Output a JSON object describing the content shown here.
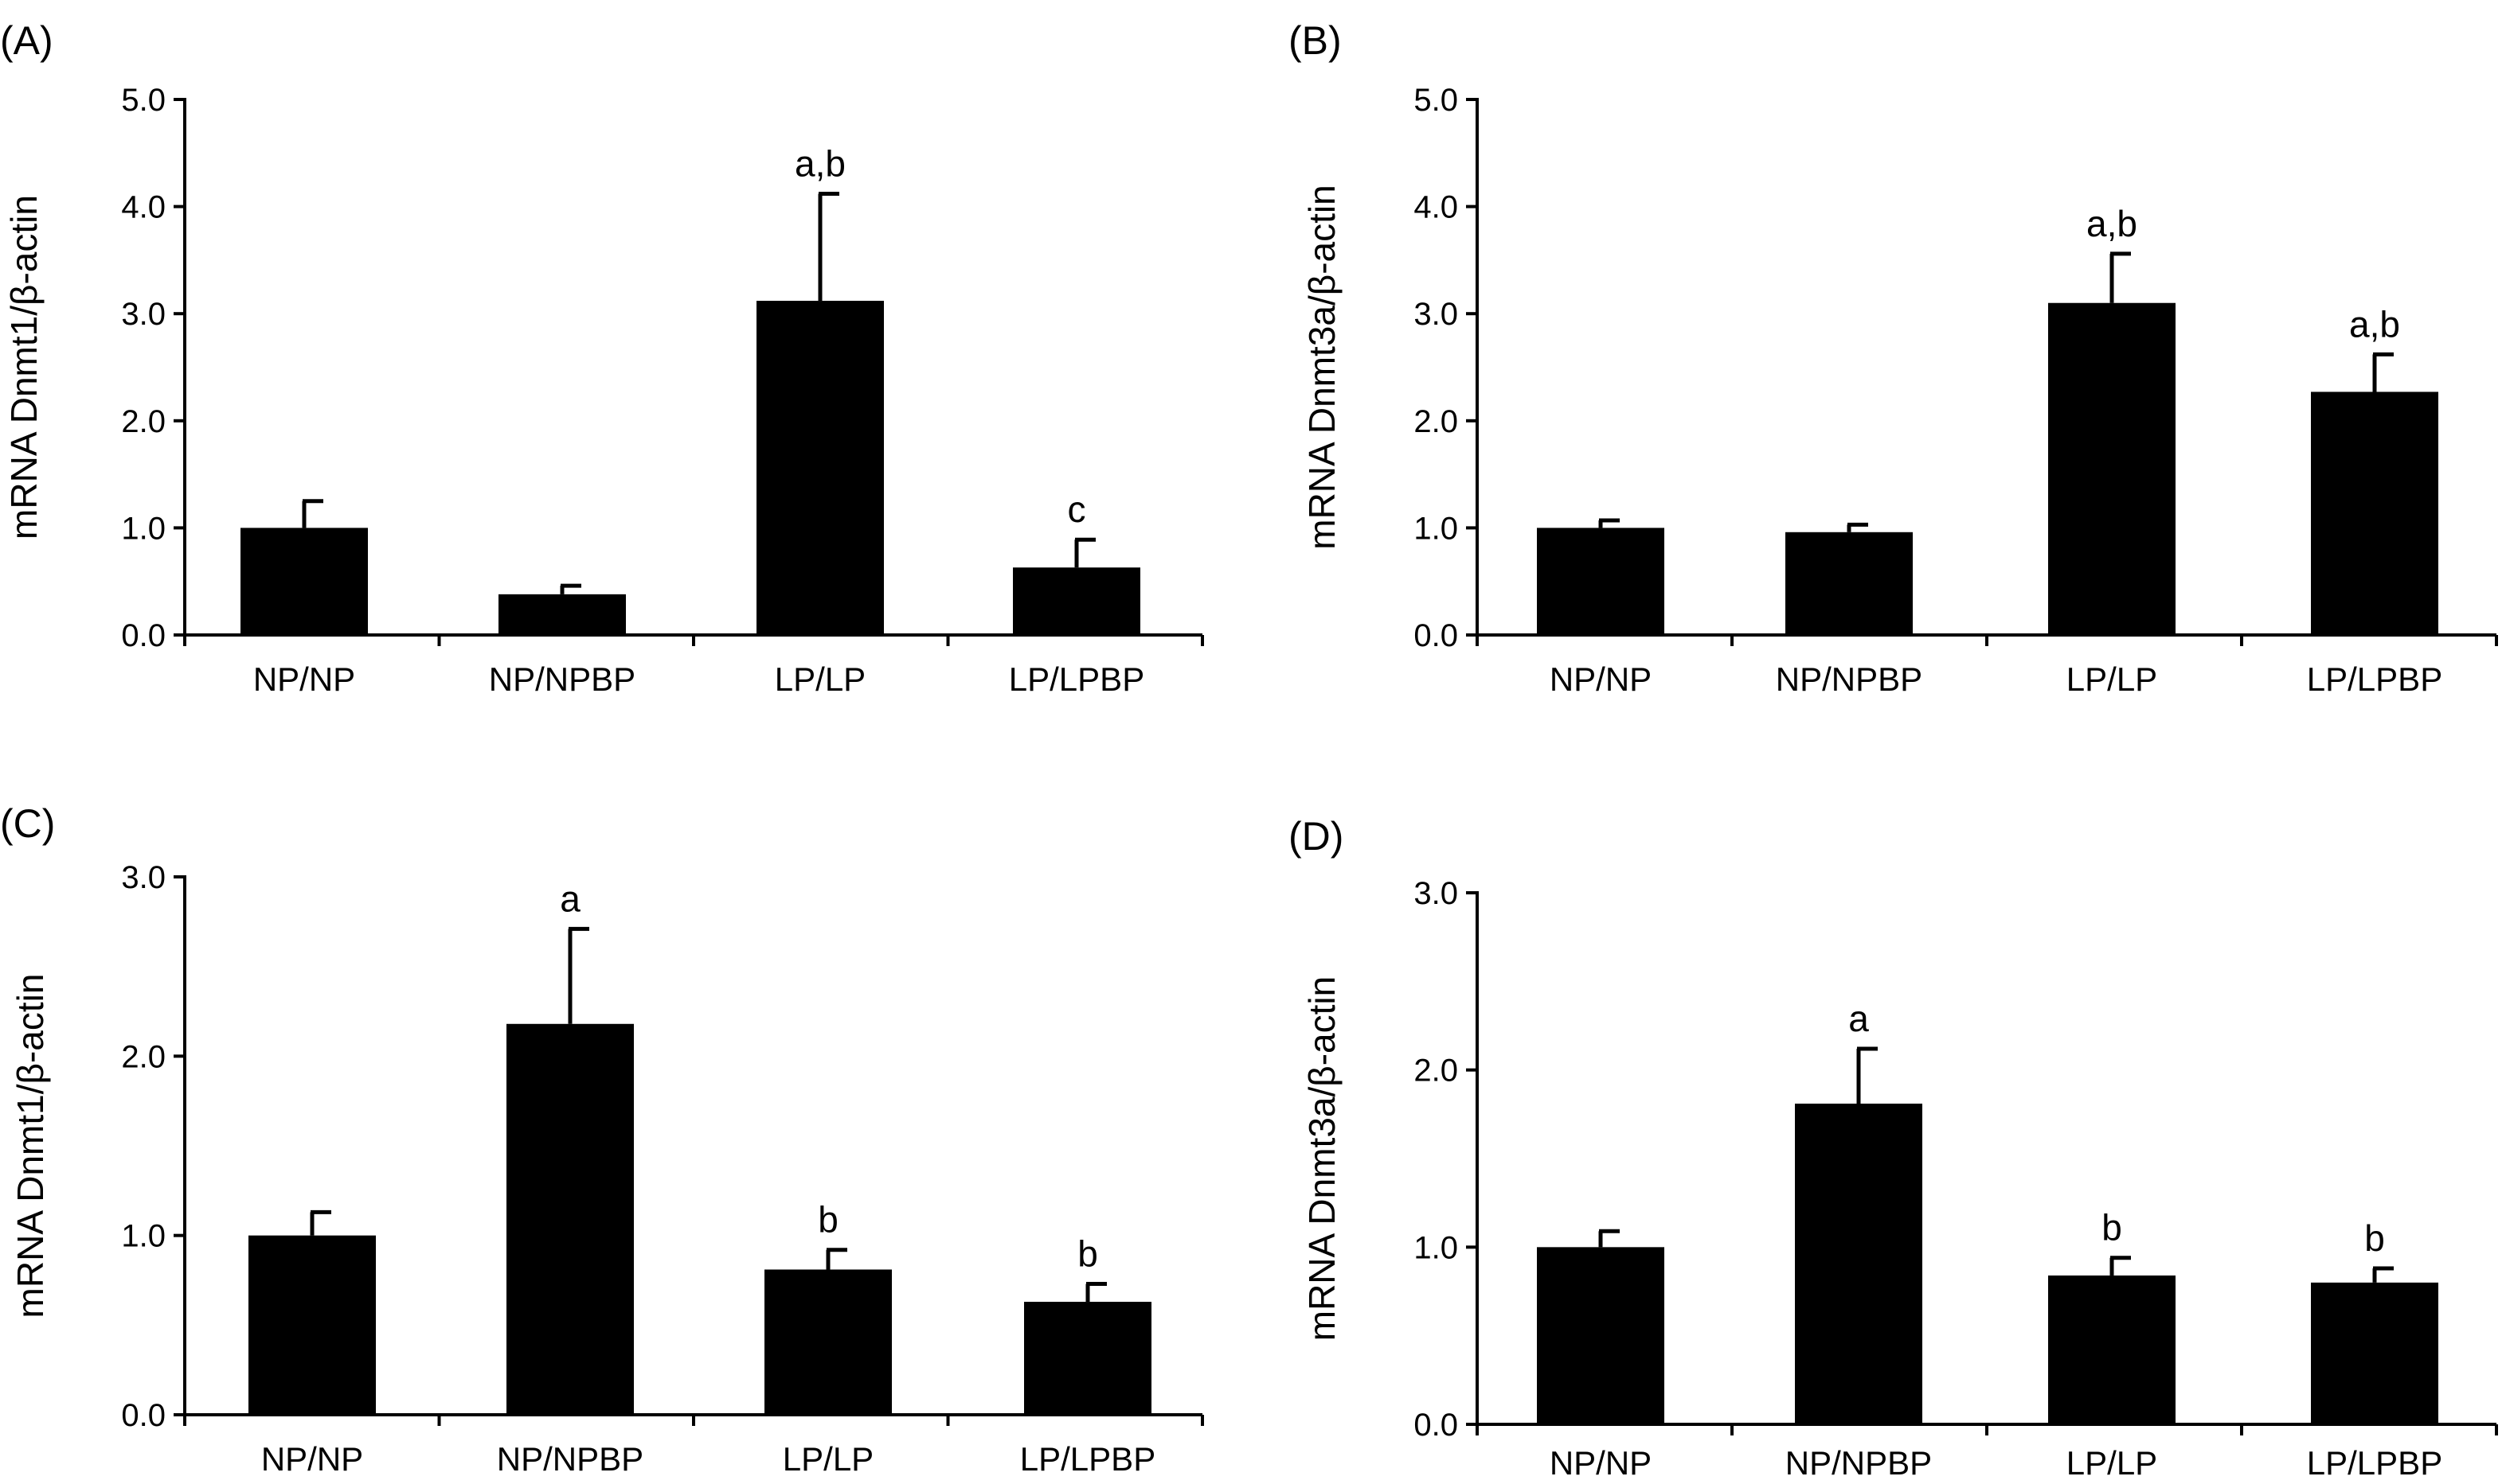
{
  "chart_data": [
    {
      "type": "bar",
      "panel": "(A)",
      "ylabel": "mRNA Dnmt1/β-actin",
      "xlabel": "",
      "categories": [
        "NP/NP",
        "NP/NPBP",
        "LP/LP",
        "LP/LPBP"
      ],
      "values": [
        1.0,
        0.38,
        3.12,
        0.63
      ],
      "errors": [
        0.25,
        0.08,
        1.0,
        0.26
      ],
      "annotations": [
        "",
        "",
        "a,b",
        "c"
      ],
      "ylim": [
        0,
        5
      ],
      "yticks": [
        "0.0",
        "1.0",
        "2.0",
        "3.0",
        "4.0",
        "5.0"
      ],
      "color": "#000000",
      "grid": false
    },
    {
      "type": "bar",
      "panel": "(B)",
      "ylabel": "mRNA Dnmt3a/β-actin",
      "xlabel": "",
      "categories": [
        "NP/NP",
        "NP/NPBP",
        "LP/LP",
        "LP/LPBP"
      ],
      "values": [
        1.0,
        0.96,
        3.1,
        2.27
      ],
      "errors": [
        0.07,
        0.07,
        0.46,
        0.35
      ],
      "annotations": [
        "",
        "",
        "a,b",
        "a,b"
      ],
      "ylim": [
        0,
        5
      ],
      "yticks": [
        "0.0",
        "1.0",
        "2.0",
        "3.0",
        "4.0",
        "5.0"
      ],
      "color": "#000000",
      "grid": false
    },
    {
      "type": "bar",
      "panel": "(C)",
      "ylabel": "mRNA Dnmt1/β-actin",
      "xlabel": "",
      "categories": [
        "NP/NP",
        "NP/NPBP",
        "LP/LP",
        "LP/LPBP"
      ],
      "values": [
        1.0,
        2.18,
        0.81,
        0.63
      ],
      "errors": [
        0.13,
        0.53,
        0.11,
        0.1
      ],
      "annotations": [
        "",
        "a",
        "b",
        "b"
      ],
      "ylim": [
        0,
        3
      ],
      "yticks": [
        "0.0",
        "1.0",
        "2.0",
        "3.0"
      ],
      "color": "#000000",
      "grid": false
    },
    {
      "type": "bar",
      "panel": "(D)",
      "ylabel": "mRNA Dnmt3a/β-actin",
      "xlabel": "",
      "categories": [
        "NP/NP",
        "NP/NPBP",
        "LP/LP",
        "LP/LPBP"
      ],
      "values": [
        1.0,
        1.81,
        0.84,
        0.8
      ],
      "errors": [
        0.09,
        0.31,
        0.1,
        0.08
      ],
      "annotations": [
        "",
        "a",
        "b",
        "b"
      ],
      "ylim": [
        0,
        3
      ],
      "yticks": [
        "0.0",
        "1.0",
        "2.0",
        "3.0"
      ],
      "color": "#000000",
      "grid": false
    }
  ]
}
